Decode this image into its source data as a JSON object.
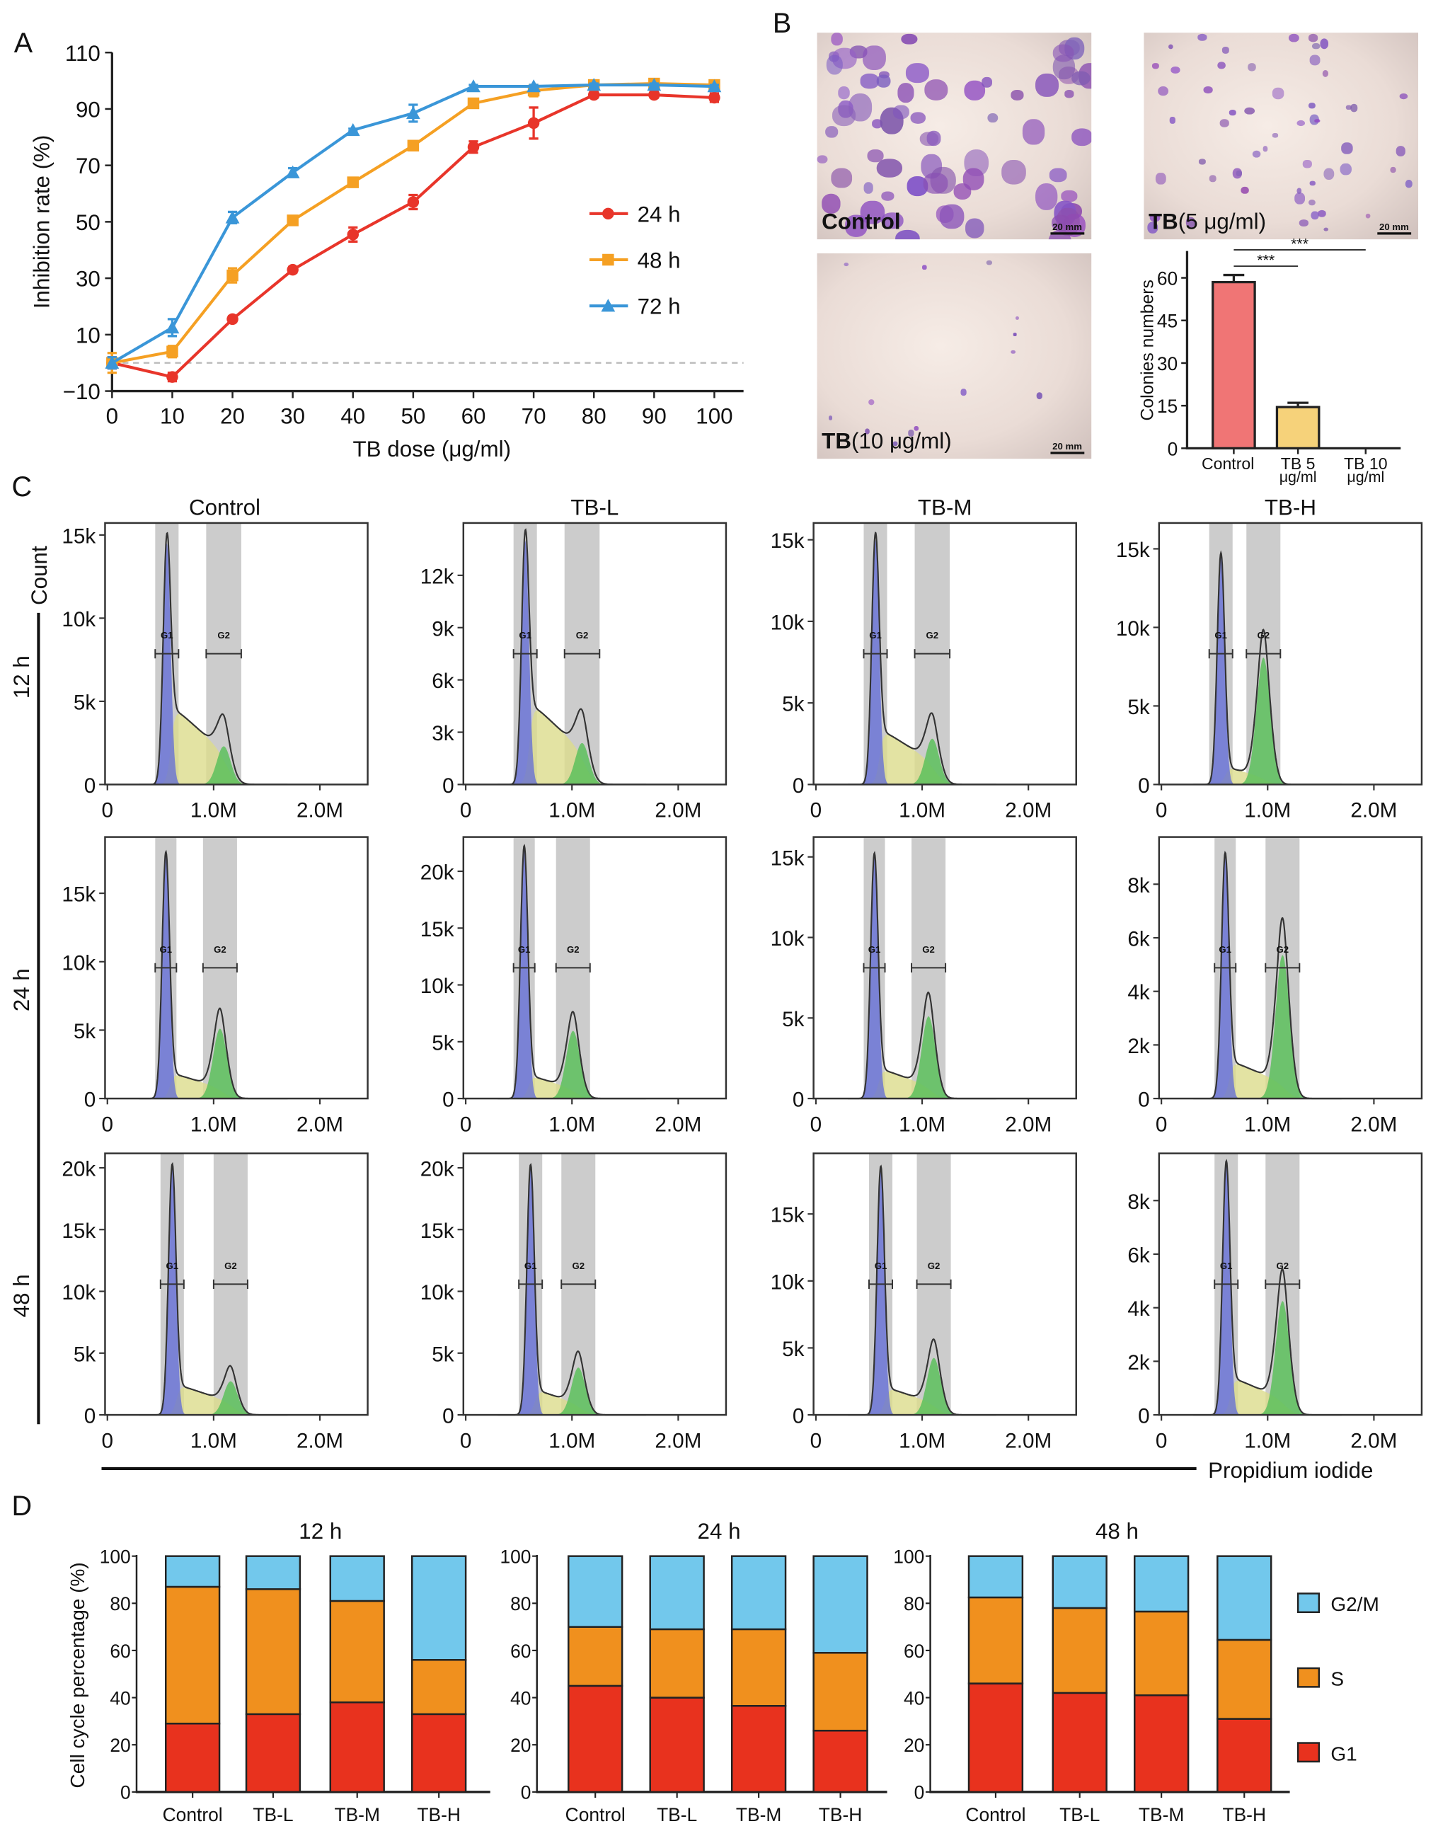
{
  "panel_labels": {
    "a": "A",
    "b": "B",
    "c": "C",
    "d": "D"
  },
  "micrographs": [
    {
      "label_bold": "Control",
      "label_rest": "",
      "scale_bar": "20 mm",
      "colony_density": "high"
    },
    {
      "label_bold": "TB",
      "label_rest": "(5 μg/ml)",
      "scale_bar": "20 mm",
      "colony_density": "medium"
    },
    {
      "label_bold": "TB",
      "label_rest": "(10 μg/ml)",
      "scale_bar": "20 mm",
      "colony_density": "low"
    }
  ],
  "chart_data": [
    {
      "type": "line",
      "xlabel": "TB dose (μg/ml)",
      "ylabel": "Inhibition rate (%)",
      "xlim": [
        0,
        100
      ],
      "ylim": [
        -10,
        110
      ],
      "xticks": [
        0,
        10,
        20,
        30,
        40,
        50,
        60,
        70,
        80,
        90,
        100
      ],
      "yticks": [
        -10,
        10,
        30,
        50,
        70,
        90,
        110
      ],
      "ytick_labels": [
        "−10",
        "10",
        "30",
        "50",
        "70",
        "90",
        "110"
      ],
      "reference_line": 0,
      "legend": "right",
      "series": [
        {
          "name": "24 h",
          "color": "#e8352a",
          "marker": "circle",
          "x": [
            0,
            10,
            20,
            30,
            40,
            50,
            60,
            70,
            80,
            90,
            100
          ],
          "y": [
            0,
            -5,
            15.5,
            33,
            45.5,
            57,
            76.5,
            85,
            95,
            95,
            94
          ],
          "err": [
            2,
            1.5,
            1,
            1,
            2.5,
            2.5,
            2,
            5.5,
            1,
            1,
            1.5
          ]
        },
        {
          "name": "48 h",
          "color": "#f5a023",
          "marker": "square",
          "x": [
            0,
            10,
            20,
            30,
            40,
            50,
            60,
            70,
            80,
            90,
            100
          ],
          "y": [
            0,
            4,
            31,
            50.5,
            64,
            77,
            92,
            96.5,
            98.5,
            99,
            98.5
          ],
          "err": [
            3.5,
            2,
            2.5,
            1.5,
            1,
            1,
            1,
            2,
            1,
            1,
            1
          ]
        },
        {
          "name": "72 h",
          "color": "#3a96d8",
          "marker": "triangle",
          "x": [
            0,
            10,
            20,
            30,
            40,
            50,
            60,
            70,
            80,
            90,
            100
          ],
          "y": [
            0,
            12.5,
            51.5,
            67.5,
            82.5,
            88.5,
            98,
            98,
            98.5,
            98.5,
            98
          ],
          "err": [
            2,
            3,
            2,
            1.5,
            0.5,
            3,
            0.5,
            0.5,
            0.5,
            0.5,
            0.5
          ]
        }
      ]
    },
    {
      "type": "bar",
      "ylabel": "Colonies numbers",
      "ylim": [
        0,
        70
      ],
      "yticks": [
        0,
        15,
        30,
        45,
        60
      ],
      "categories": [
        [
          "Control"
        ],
        [
          "TB 5",
          "μg/ml"
        ],
        [
          "TB 10",
          "μg/ml"
        ]
      ],
      "values": [
        58.5,
        14.5,
        0
      ],
      "errors": [
        2.5,
        1.5,
        0
      ],
      "colors": [
        "#f07575",
        "#f6d27a",
        "#dddddd"
      ],
      "significance": [
        {
          "from": 0,
          "to": 1,
          "label": "***"
        },
        {
          "from": 0,
          "to": 2,
          "label": "***"
        }
      ]
    },
    {
      "type": "area",
      "xlabel": "Propidium iodide",
      "ylabel": "Count",
      "columns": [
        "Control",
        "TB-L",
        "TB-M",
        "TB-H"
      ],
      "rows": [
        "12 h",
        "24 h",
        "48 h"
      ],
      "xlim": [
        0,
        2.45
      ],
      "xticks": [
        0,
        1,
        2
      ],
      "xtick_labels": [
        "0",
        "1.0M",
        "2.0M"
      ],
      "gate_labels": [
        "G1",
        "G2"
      ],
      "colors": {
        "G1": "#5f6ad8",
        "S": "#dcdc8c",
        "G2": "#5cbf5c",
        "gate": "#cccccc"
      },
      "panels": [
        [
          {
            "ymax": 15.3,
            "yticks": [
              0,
              5,
              10,
              15
            ],
            "ytick_labels": [
              "0",
              "5k",
              "10k",
              "15k"
            ],
            "g1_peak": 14.5,
            "s_level": 5,
            "g2_peak": 2.7,
            "gate_g1": [
              0.45,
              0.67
            ],
            "gate_g2": [
              0.93,
              1.26
            ]
          },
          {
            "ymax": 14.6,
            "yticks": [
              0,
              3,
              6,
              9,
              12
            ],
            "ytick_labels": [
              "0",
              "3k",
              "6k",
              "9k",
              "12k"
            ],
            "g1_peak": 14,
            "s_level": 5,
            "g2_peak": 2.8,
            "gate_g1": [
              0.45,
              0.67
            ],
            "gate_g2": [
              0.93,
              1.26
            ]
          },
          {
            "ymax": 15.6,
            "yticks": [
              0,
              5,
              10,
              15
            ],
            "ytick_labels": [
              "0",
              "5k",
              "10k",
              "15k"
            ],
            "g1_peak": 15,
            "s_level": 3.6,
            "g2_peak": 3.3,
            "gate_g1": [
              0.45,
              0.67
            ],
            "gate_g2": [
              0.93,
              1.26
            ]
          },
          {
            "ymax": 16.2,
            "yticks": [
              0,
              5,
              10,
              15
            ],
            "ytick_labels": [
              "0",
              "5k",
              "10k",
              "15k"
            ],
            "g1_peak": 14.6,
            "s_level": 1.2,
            "g2_peak": 9.5,
            "gate_g1": [
              0.45,
              0.67
            ],
            "gate_g2": [
              0.8,
              1.12
            ]
          }
        ],
        [
          {
            "ymax": 18.6,
            "yticks": [
              0,
              5,
              10,
              15
            ],
            "ytick_labels": [
              "0",
              "5k",
              "10k",
              "15k"
            ],
            "g1_peak": 17.8,
            "s_level": 2,
            "g2_peak": 6,
            "gate_g1": [
              0.45,
              0.65
            ],
            "gate_g2": [
              0.9,
              1.22
            ]
          },
          {
            "ymax": 22.4,
            "yticks": [
              0,
              5,
              10,
              15,
              20
            ],
            "ytick_labels": [
              "0",
              "5k",
              "10k",
              "15k",
              "20k"
            ],
            "g1_peak": 22,
            "s_level": 2.2,
            "g2_peak": 7,
            "gate_g1": [
              0.45,
              0.65
            ],
            "gate_g2": [
              0.85,
              1.17
            ]
          },
          {
            "ymax": 15.8,
            "yticks": [
              0,
              5,
              10,
              15
            ],
            "ytick_labels": [
              "0",
              "5k",
              "10k",
              "15k"
            ],
            "g1_peak": 15,
            "s_level": 2,
            "g2_peak": 6,
            "gate_g1": [
              0.45,
              0.65
            ],
            "gate_g2": [
              0.9,
              1.22
            ]
          },
          {
            "ymax": 9.5,
            "yticks": [
              0,
              2,
              4,
              6,
              8
            ],
            "ytick_labels": [
              "0",
              "2k",
              "4k",
              "6k",
              "8k"
            ],
            "g1_peak": 9,
            "s_level": 1.5,
            "g2_peak": 6.3,
            "gate_g1": [
              0.5,
              0.7
            ],
            "gate_g2": [
              0.98,
              1.3
            ]
          }
        ],
        [
          {
            "ymax": 20.6,
            "yticks": [
              0,
              5,
              10,
              15,
              20
            ],
            "ytick_labels": [
              "0",
              "5k",
              "10k",
              "15k",
              "20k"
            ],
            "g1_peak": 20,
            "s_level": 2.6,
            "g2_peak": 3.2,
            "gate_g1": [
              0.5,
              0.72
            ],
            "gate_g2": [
              1.0,
              1.32
            ]
          },
          {
            "ymax": 20.6,
            "yticks": [
              0,
              5,
              10,
              15,
              20
            ],
            "ytick_labels": [
              "0",
              "5k",
              "10k",
              "15k",
              "20k"
            ],
            "g1_peak": 20,
            "s_level": 2.2,
            "g2_peak": 4.5,
            "gate_g1": [
              0.5,
              0.72
            ],
            "gate_g2": [
              0.9,
              1.22
            ]
          },
          {
            "ymax": 19,
            "yticks": [
              0,
              5,
              10,
              15
            ],
            "ytick_labels": [
              "0",
              "5k",
              "10k",
              "15k"
            ],
            "g1_peak": 18.3,
            "s_level": 2.2,
            "g2_peak": 5,
            "gate_g1": [
              0.5,
              0.72
            ],
            "gate_g2": [
              0.95,
              1.27
            ]
          },
          {
            "ymax": 9.5,
            "yticks": [
              0,
              2,
              4,
              6,
              8
            ],
            "ytick_labels": [
              "0",
              "2k",
              "4k",
              "6k",
              "8k"
            ],
            "g1_peak": 9.3,
            "s_level": 1.5,
            "g2_peak": 5,
            "gate_g1": [
              0.5,
              0.72
            ],
            "gate_g2": [
              0.98,
              1.3
            ]
          }
        ]
      ]
    },
    {
      "type": "bar",
      "stacked": true,
      "ylabel": "Cell cycle percentage (%)",
      "ylim": [
        0,
        100
      ],
      "yticks": [
        0,
        20,
        40,
        60,
        80,
        100
      ],
      "categories": [
        "Control",
        "TB-L",
        "TB-M",
        "TB-H"
      ],
      "legend": "right",
      "series_order": [
        "G1",
        "S",
        "G2/M"
      ],
      "colors": {
        "G1": "#e8321e",
        "S": "#f0901e",
        "G2/M": "#72c8ec"
      },
      "groups": [
        {
          "title": "12 h",
          "G1": [
            29,
            33,
            38,
            33
          ],
          "S": [
            58,
            53,
            43,
            23
          ],
          "G2/M": [
            13,
            14,
            19,
            44
          ]
        },
        {
          "title": "24 h",
          "G1": [
            45,
            40,
            36.5,
            26
          ],
          "S": [
            25,
            29,
            32.5,
            33
          ],
          "G2/M": [
            30,
            31,
            31,
            41
          ]
        },
        {
          "title": "48 h",
          "G1": [
            46,
            42,
            41,
            31
          ],
          "S": [
            36.5,
            36,
            35.5,
            33.5
          ],
          "G2/M": [
            17.5,
            22,
            23.5,
            35.5
          ]
        }
      ]
    }
  ]
}
